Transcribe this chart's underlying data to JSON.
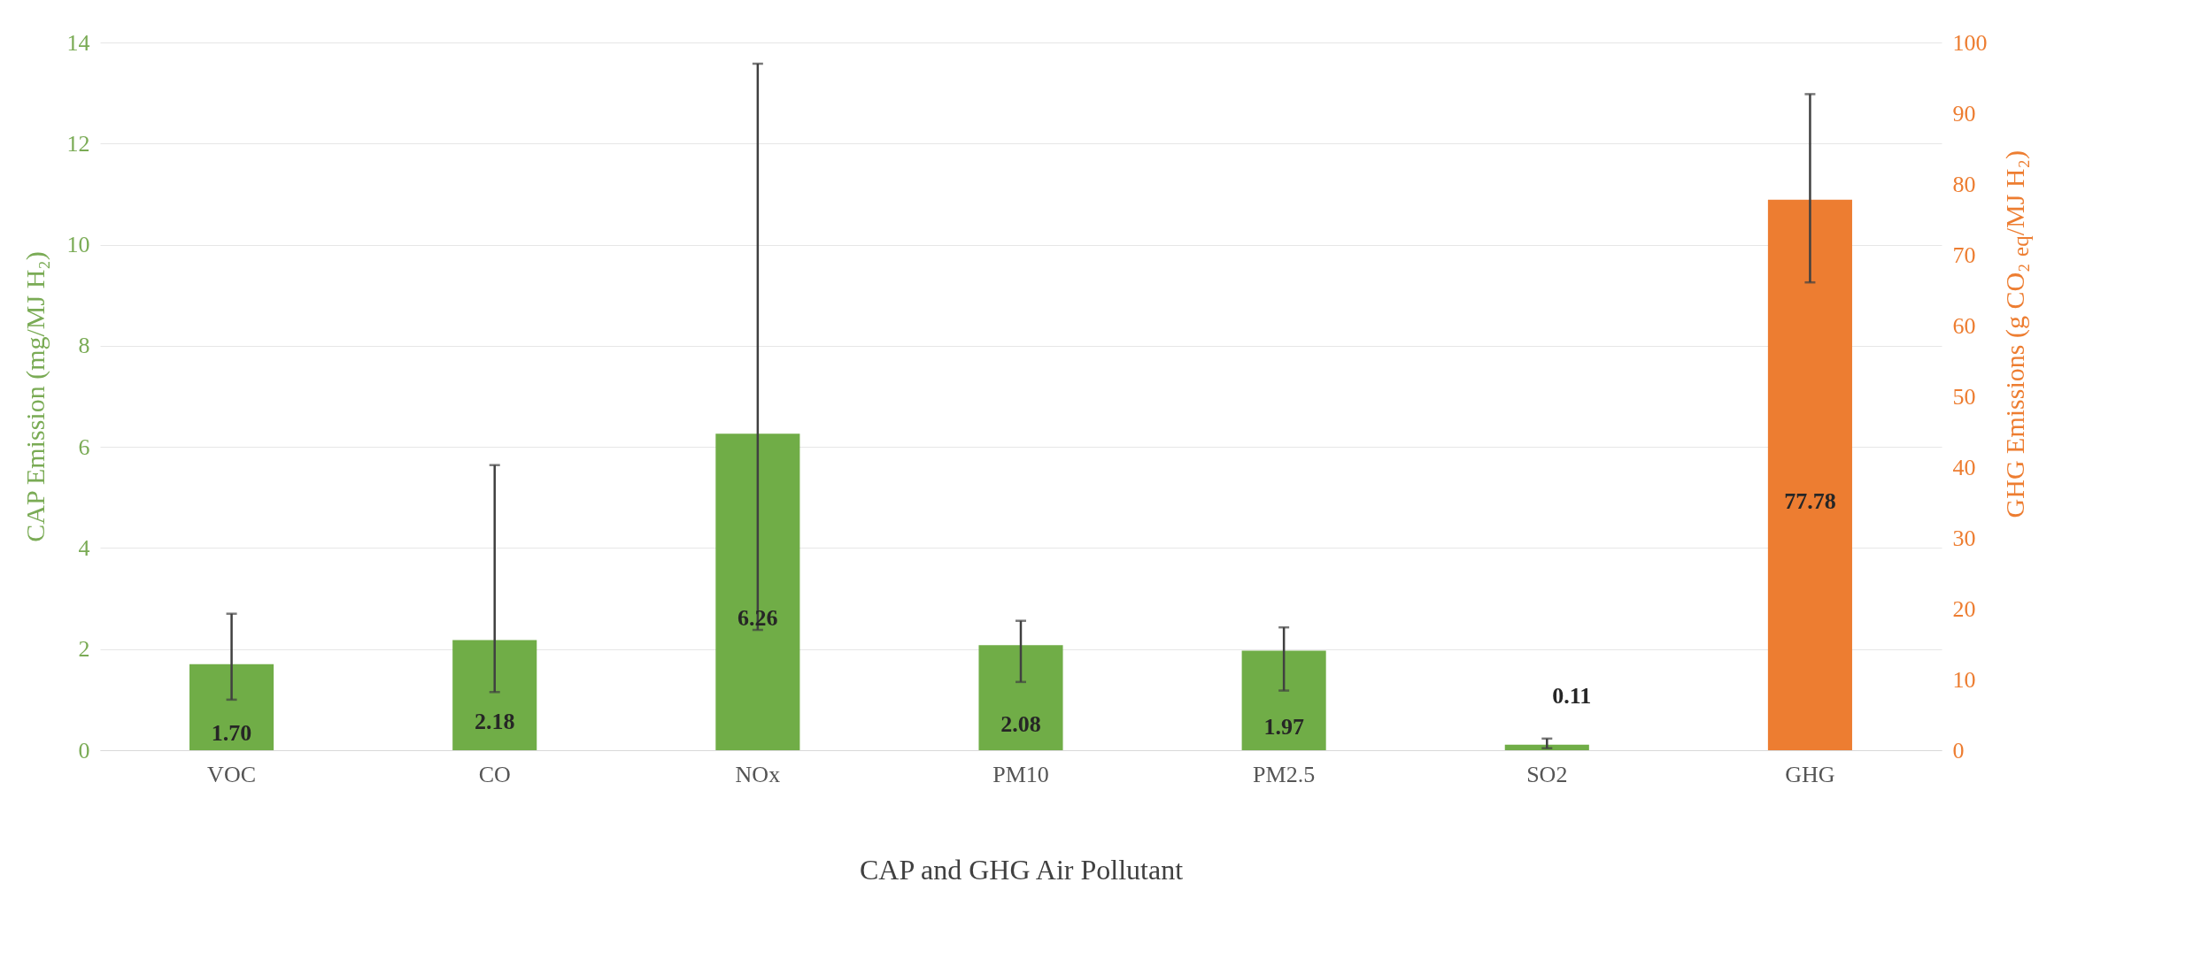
{
  "chart_data": {
    "type": "bar",
    "xlabel": "CAP and GHG Air Pollutant",
    "ylabel": "CAP Emission (mg/MJ H₂)",
    "y2label": "GHG Emissions (g CO₂ $_{eq}$/MJ H₂)",
    "categories": [
      "VOC",
      "CO",
      "NOx",
      "PM10",
      "PM2.5",
      "SO2",
      "GHG"
    ],
    "series": [
      {
        "color": "#70ad47",
        "values": [
          1.7,
          2.18,
          6.26,
          2.08,
          1.97,
          0.11,
          null
        ],
        "value_labels": [
          "1.70",
          "2.18",
          "6.26",
          "2.08",
          "1.97",
          "0.11",
          null
        ],
        "errors": [
          [
            1.0,
            2.7
          ],
          [
            1.15,
            5.64
          ],
          [
            2.38,
            13.58
          ],
          [
            1.35,
            2.56
          ],
          [
            1.18,
            2.43
          ],
          [
            0.04,
            0.23
          ],
          null
        ]
      },
      {
        "color": "#ed7d31",
        "axis": "y2",
        "values": [
          null,
          null,
          null,
          null,
          null,
          null,
          77.78
        ],
        "value_labels": [
          null,
          null,
          null,
          null,
          null,
          null,
          "77.78"
        ],
        "errors": [
          null,
          null,
          null,
          null,
          null,
          null,
          [
            66.1,
            92.7
          ]
        ]
      }
    ],
    "ylim": [
      0,
      14
    ],
    "yticks": [
      0,
      2,
      4,
      6,
      8,
      10,
      12,
      14
    ],
    "y2lim": [
      0,
      100
    ],
    "y2ticks": [
      0,
      10,
      20,
      30,
      40,
      50,
      60,
      70,
      80,
      90,
      100
    ],
    "grid": "y"
  }
}
